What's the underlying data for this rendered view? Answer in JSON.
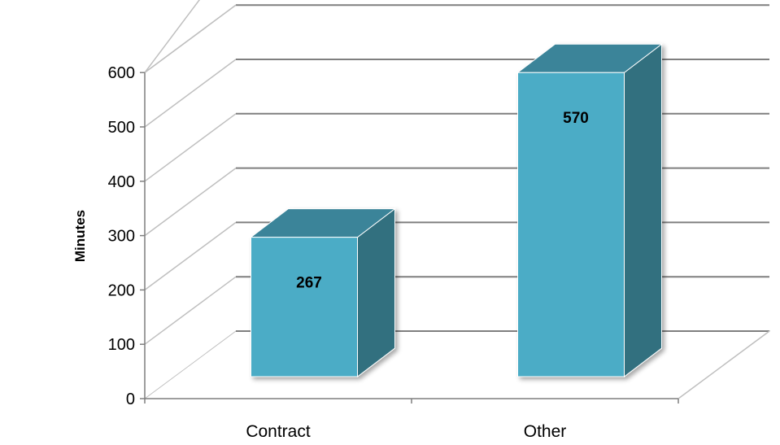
{
  "chart_data": {
    "type": "bar",
    "style": "3d-column",
    "categories": [
      "Contract",
      "Other"
    ],
    "values": [
      267,
      570
    ],
    "data_labels": [
      "267",
      "570"
    ],
    "ylabel": "Minutes",
    "xlabel": "",
    "ylim": [
      0,
      600
    ],
    "yticks": [
      0,
      100,
      200,
      300,
      400,
      500,
      600
    ],
    "grid": true,
    "legend": "none",
    "colors": {
      "bar_front": "#4BACC6",
      "bar_top": "#3B8499",
      "bar_side": "#31707F",
      "grid": "#7F7F7F",
      "axis": "#7F7F7F"
    }
  }
}
